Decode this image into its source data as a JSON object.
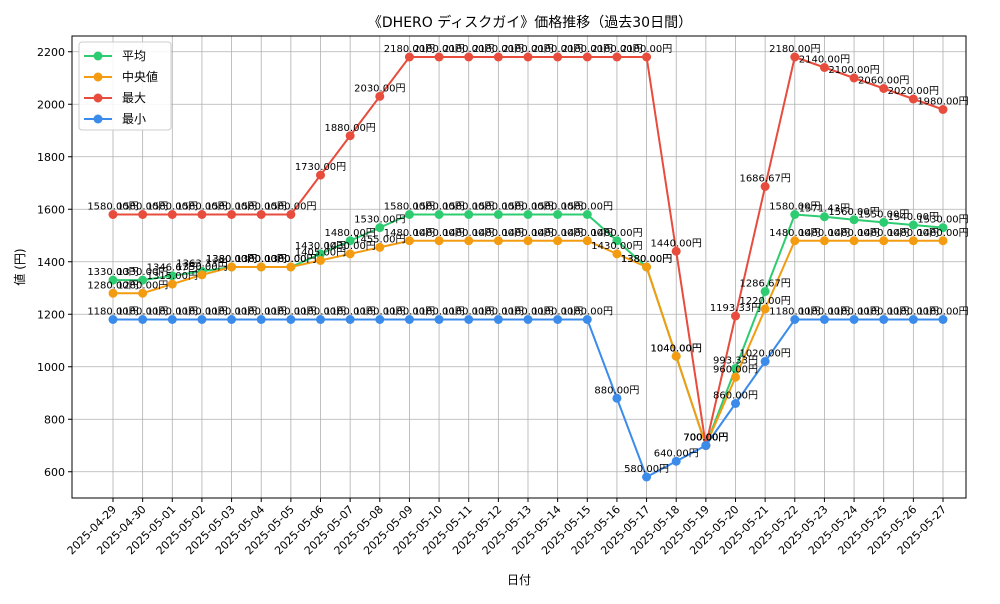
{
  "chart_data": {
    "type": "line",
    "title": "《DHERO ディスクガイ》価格推移（過去30日間）",
    "xlabel": "日付",
    "ylabel": "値 (円)",
    "ylim": [
      500,
      2260
    ],
    "yticks": [
      600,
      800,
      1000,
      1200,
      1400,
      1600,
      1800,
      2000,
      2200
    ],
    "grid": true,
    "legend_position": "top-left",
    "label_suffix": "円",
    "categories": [
      "2025-04-29",
      "2025-04-30",
      "2025-05-01",
      "2025-05-02",
      "2025-05-03",
      "2025-05-04",
      "2025-05-05",
      "2025-05-06",
      "2025-05-07",
      "2025-05-08",
      "2025-05-09",
      "2025-05-10",
      "2025-05-11",
      "2025-05-12",
      "2025-05-13",
      "2025-05-14",
      "2025-05-15",
      "2025-05-16",
      "2025-05-17",
      "2025-05-18",
      "2025-05-19",
      "2025-05-20",
      "2025-05-21",
      "2025-05-22",
      "2025-05-23",
      "2025-05-24",
      "2025-05-25",
      "2025-05-26",
      "2025-05-27"
    ],
    "series": [
      {
        "name": "平均",
        "color": "#2ecc71",
        "values": [
          1330,
          1330,
          1346.67,
          1363.33,
          1380,
          1380,
          1380,
          1430,
          1480,
          1530,
          1580,
          1580,
          1580,
          1580,
          1580,
          1580,
          1580,
          1480,
          1380,
          1040,
          700,
          993.33,
          1286.67,
          1580,
          1571.43,
          1560,
          1550,
          1540,
          1530
        ]
      },
      {
        "name": "中央値",
        "color": "#f39c12",
        "values": [
          1280,
          1280,
          1315,
          1350,
          1380,
          1380,
          1380,
          1405,
          1430,
          1455,
          1480,
          1480,
          1480,
          1480,
          1480,
          1480,
          1480,
          1430,
          1380,
          1040,
          700,
          960,
          1220,
          1480,
          1480,
          1480,
          1480,
          1480,
          1480
        ]
      },
      {
        "name": "最大",
        "color": "#e74c3c",
        "values": [
          1580,
          1580,
          1580,
          1580,
          1580,
          1580,
          1580,
          1730,
          1880,
          2030,
          2180,
          2180,
          2180,
          2180,
          2180,
          2180,
          2180,
          2180,
          2180,
          1440,
          700,
          1193.33,
          1686.67,
          2180,
          2140,
          2100,
          2060,
          2020,
          1980
        ]
      },
      {
        "name": "最小",
        "color": "#3b8beb",
        "values": [
          1180,
          1180,
          1180,
          1180,
          1180,
          1180,
          1180,
          1180,
          1180,
          1180,
          1180,
          1180,
          1180,
          1180,
          1180,
          1180,
          1180,
          880,
          580,
          640,
          700,
          860,
          1020,
          1180,
          1180,
          1180,
          1180,
          1180,
          1180
        ]
      }
    ]
  }
}
